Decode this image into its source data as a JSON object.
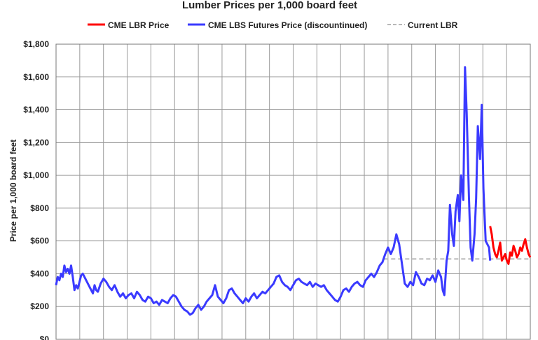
{
  "chart_data": {
    "type": "line",
    "title": "Lumber Prices per 1,000 board feet",
    "ylabel": "Price per 1,000 board feet",
    "xlabel": "",
    "ylim": [
      0,
      1800
    ],
    "yticks": [
      0,
      200,
      400,
      600,
      800,
      1000,
      1200,
      1400,
      1600,
      1800
    ],
    "ytick_labels": [
      "$0",
      "$200",
      "$400",
      "$600",
      "$800",
      "$1,000",
      "$1,200",
      "$1,400",
      "$1,600",
      "$1,800"
    ],
    "xlim": [
      0,
      85
    ],
    "x_gridlines": [
      0,
      4.25,
      8.5,
      12.75,
      17,
      21.25,
      25.5,
      29.75,
      34,
      38.25,
      42.5,
      46.75,
      51,
      55.25,
      59.5,
      63.75,
      68,
      72.25,
      76.5,
      80.75,
      85
    ],
    "grid": true,
    "legend_position": "top",
    "series": [
      {
        "name": "CME LBR Price",
        "color": "#ff0000",
        "x": [
          77.8,
          78.1,
          78.4,
          78.7,
          79.0,
          79.3,
          79.6,
          79.9,
          80.2,
          80.5,
          80.8,
          81.1,
          81.4,
          81.7,
          82.0,
          82.3,
          82.6,
          82.9,
          83.2,
          83.5,
          83.8,
          84.1,
          84.4,
          84.7,
          85.0
        ],
        "values": [
          690,
          640,
          560,
          520,
          500,
          540,
          590,
          480,
          500,
          520,
          480,
          460,
          530,
          510,
          570,
          540,
          500,
          520,
          560,
          540,
          580,
          610,
          560,
          520,
          500
        ]
      },
      {
        "name": "CME LBS Futures Price (discountinued)",
        "color": "#3a3aff",
        "x": [
          0.0,
          0.3,
          0.6,
          0.9,
          1.2,
          1.5,
          1.8,
          2.1,
          2.4,
          2.7,
          3.0,
          3.3,
          3.6,
          3.9,
          4.2,
          4.5,
          4.8,
          5.1,
          5.4,
          5.7,
          6.0,
          6.3,
          6.6,
          6.9,
          7.2,
          7.5,
          8.0,
          8.5,
          9.0,
          9.5,
          10.0,
          10.5,
          11.0,
          11.5,
          12.0,
          12.5,
          13.0,
          13.5,
          14.0,
          14.5,
          15.0,
          15.5,
          16.0,
          16.5,
          17.0,
          17.5,
          18.0,
          18.5,
          19.0,
          19.5,
          20.0,
          20.5,
          21.0,
          21.5,
          22.0,
          22.5,
          23.0,
          23.5,
          24.0,
          24.5,
          25.0,
          25.5,
          26.0,
          26.5,
          27.0,
          27.5,
          28.0,
          28.5,
          29.0,
          29.5,
          30.0,
          30.5,
          31.0,
          31.5,
          32.0,
          32.5,
          33.0,
          33.5,
          34.0,
          34.5,
          35.0,
          35.5,
          36.0,
          36.5,
          37.0,
          37.5,
          38.0,
          38.5,
          39.0,
          39.5,
          40.0,
          40.5,
          41.0,
          41.5,
          42.0,
          42.5,
          43.0,
          43.5,
          44.0,
          44.5,
          45.0,
          45.5,
          46.0,
          46.5,
          47.0,
          47.5,
          48.0,
          48.5,
          49.0,
          49.5,
          50.0,
          50.5,
          51.0,
          51.5,
          52.0,
          52.5,
          53.0,
          53.5,
          54.0,
          54.5,
          55.0,
          55.5,
          56.0,
          56.5,
          57.0,
          57.5,
          58.0,
          58.5,
          59.0,
          59.5,
          60.0,
          60.5,
          61.0,
          61.5,
          62.0,
          62.5,
          63.0,
          63.5,
          64.0,
          64.5,
          65.0,
          65.5,
          66.0,
          66.5,
          67.0,
          67.5,
          68.0,
          68.5,
          69.0,
          69.3,
          69.6,
          70.0,
          70.3,
          70.6,
          71.0,
          71.3,
          71.6,
          72.0,
          72.3,
          72.6,
          73.0,
          73.3,
          73.6,
          74.0,
          74.3,
          74.6,
          75.0,
          75.3,
          75.6,
          76.0,
          76.3,
          76.6,
          77.0,
          77.3,
          77.6,
          77.8
        ],
        "values": [
          330,
          380,
          360,
          400,
          380,
          450,
          410,
          430,
          400,
          450,
          380,
          300,
          330,
          310,
          350,
          390,
          400,
          380,
          360,
          340,
          320,
          300,
          280,
          330,
          300,
          290,
          340,
          370,
          350,
          320,
          300,
          330,
          290,
          260,
          280,
          250,
          270,
          280,
          250,
          290,
          270,
          240,
          230,
          260,
          250,
          220,
          230,
          210,
          240,
          230,
          220,
          250,
          270,
          260,
          230,
          200,
          180,
          170,
          150,
          160,
          190,
          210,
          180,
          200,
          230,
          250,
          270,
          330,
          260,
          240,
          220,
          250,
          300,
          310,
          280,
          260,
          240,
          220,
          250,
          230,
          260,
          280,
          250,
          270,
          290,
          280,
          300,
          320,
          340,
          380,
          390,
          350,
          330,
          320,
          300,
          330,
          360,
          370,
          350,
          340,
          330,
          350,
          320,
          340,
          330,
          320,
          330,
          300,
          280,
          260,
          240,
          230,
          260,
          300,
          310,
          290,
          320,
          340,
          350,
          330,
          320,
          360,
          380,
          400,
          380,
          410,
          450,
          470,
          520,
          560,
          520,
          560,
          640,
          580,
          460,
          340,
          320,
          350,
          330,
          410,
          380,
          340,
          330,
          370,
          360,
          390,
          350,
          420,
          380,
          300,
          270,
          480,
          540,
          820,
          640,
          570,
          780,
          880,
          720,
          1000,
          850,
          1660,
          1380,
          870,
          560,
          480,
          640,
          860,
          1300,
          1100,
          1430,
          920,
          600,
          580,
          560,
          480
        ]
      },
      {
        "name": "Current LBR",
        "color": "#b8b8b8",
        "dashed": true,
        "x": [
          58.8,
          85
        ],
        "values": [
          490,
          490
        ]
      }
    ]
  }
}
